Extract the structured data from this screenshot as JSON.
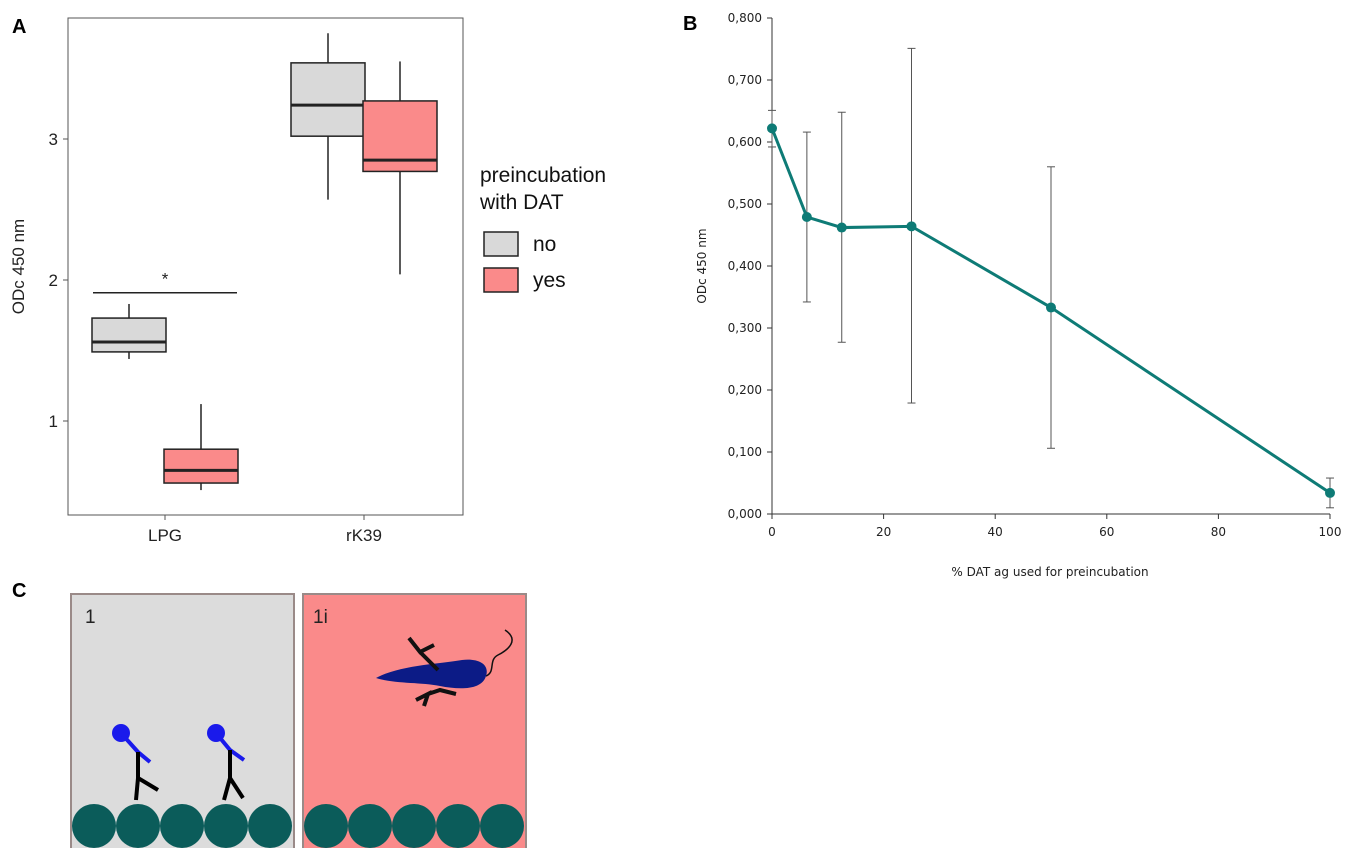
{
  "panels": {
    "a": "A",
    "b": "B",
    "c": "C"
  },
  "chart_data": [
    {
      "type": "box",
      "panel": "A",
      "ylabel": "ODc 450 nm",
      "yticks": [
        1,
        2,
        3
      ],
      "ylim": [
        0.35,
        3.8
      ],
      "categories": [
        "LPG",
        "rK39"
      ],
      "legend_title": [
        "preincubation",
        "with DAT"
      ],
      "legend_position": "right",
      "series": [
        {
          "name": "no",
          "color": "#d9d9d9",
          "boxes": [
            {
              "category": "LPG",
              "min": 1.44,
              "q1": 1.49,
              "median": 1.56,
              "q3": 1.73,
              "max": 1.83
            },
            {
              "category": "rK39",
              "min": 2.57,
              "q1": 3.02,
              "median": 3.24,
              "q3": 3.54,
              "max": 3.75
            }
          ]
        },
        {
          "name": "yes",
          "color": "#fa8a8a",
          "boxes": [
            {
              "category": "LPG",
              "min": 0.51,
              "q1": 0.56,
              "median": 0.65,
              "q3": 0.8,
              "max": 1.12
            },
            {
              "category": "rK39",
              "min": 2.04,
              "q1": 2.77,
              "median": 2.85,
              "q3": 3.27,
              "max": 3.55
            }
          ]
        }
      ],
      "annotations": [
        {
          "text": "*",
          "category": "LPG",
          "y": 1.91
        }
      ]
    },
    {
      "type": "line",
      "panel": "B",
      "xlabel": "% DAT ag used for preincubation",
      "ylabel": "ODc 450 nm",
      "xlim": [
        0,
        100
      ],
      "ylim": [
        0,
        0.8
      ],
      "xticks": [
        "0",
        "20",
        "40",
        "60",
        "80",
        "100"
      ],
      "yticks": [
        "0,000",
        "0,100",
        "0,200",
        "0,300",
        "0,400",
        "0,500",
        "0,600",
        "0,700",
        "0,800"
      ],
      "color": "#0e7b76",
      "x": [
        0,
        6.25,
        12.5,
        25,
        50,
        100
      ],
      "y": [
        0.622,
        0.479,
        0.462,
        0.464,
        0.333,
        0.034
      ],
      "error_low": [
        0.592,
        0.342,
        0.277,
        0.179,
        0.106,
        0.01
      ],
      "error_high": [
        0.651,
        0.616,
        0.648,
        0.751,
        0.56,
        0.058
      ]
    }
  ],
  "panel_c": {
    "cells": [
      {
        "label": "1",
        "background": "#dcdcdc"
      },
      {
        "label": "1i",
        "background": "#fa8a8a"
      }
    ],
    "bead_color": "#0b5c5a",
    "antibody_color": "#1a1aeb",
    "parasite_color": "#0c1b86"
  }
}
